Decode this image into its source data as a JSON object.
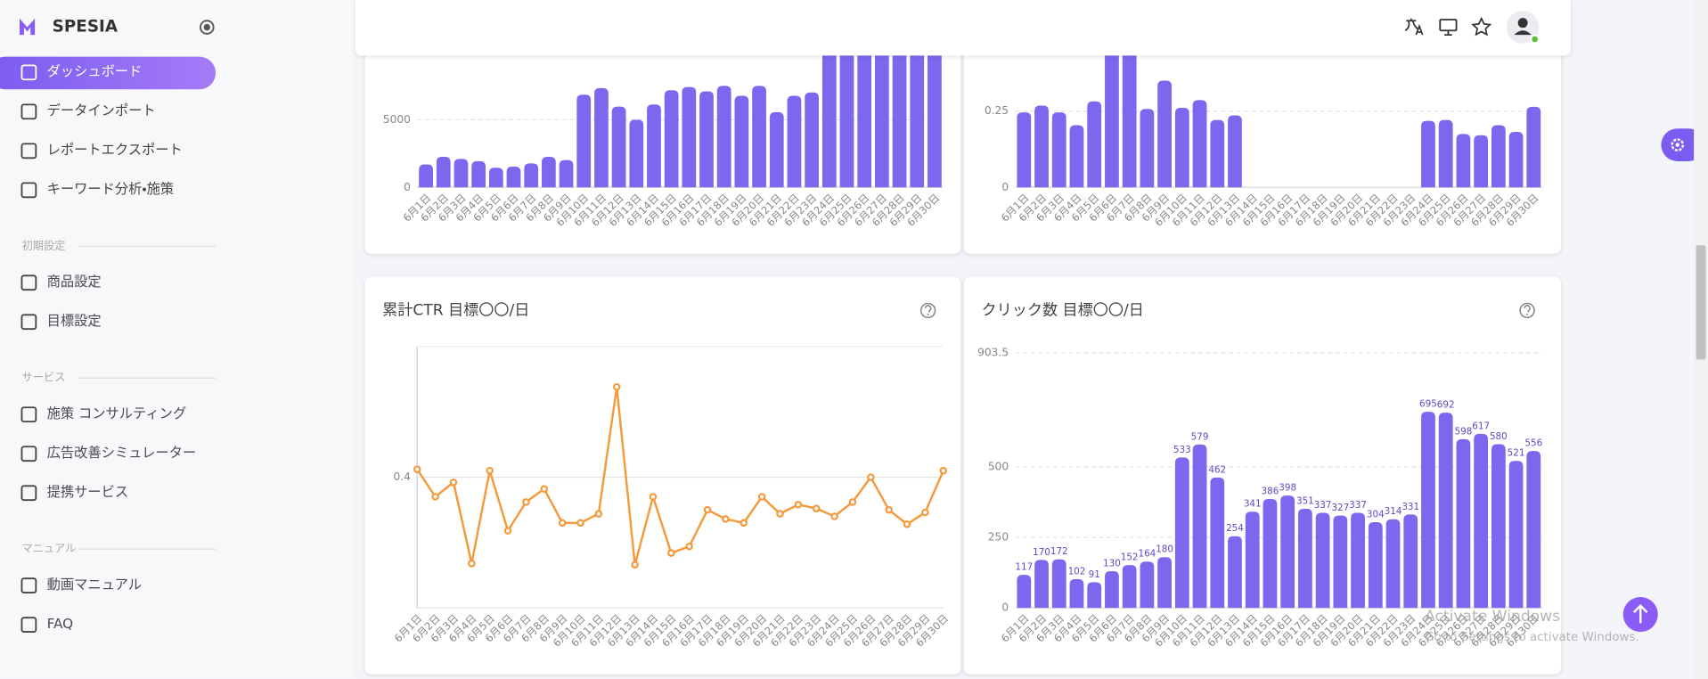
{
  "brand": "SPESIA",
  "nav": [
    "ダッシュボード",
    "データインポート",
    "レポートエクスポート",
    "キーワード分析・施策"
  ],
  "sections": [
    {
      "label": "初期設定",
      "items": [
        "商品設定",
        "目標設定"
      ]
    },
    {
      "label": "サービス",
      "items": [
        "施策 コンサルティング",
        "広告改善シミュレーター",
        "提携サービス"
      ]
    },
    {
      "label": "マニュアル",
      "items": [
        "動画マニュアル",
        "FAQ"
      ]
    }
  ],
  "chart_data": [
    {
      "type": "bar",
      "color": "#7b68ee",
      "grid": true,
      "categories": [
        "6月1日",
        "6月2日",
        "6月3日",
        "6月4日",
        "6月5日",
        "6月6日",
        "6月7日",
        "6月8日",
        "6月9日",
        "6月10日",
        "6月11日",
        "6月12日",
        "6月13日",
        "6月14日",
        "6月15日",
        "6月16日",
        "6月17日",
        "6月18日",
        "6月19日",
        "6月20日",
        "6月21日",
        "6月22日",
        "6月23日",
        "6月24日",
        "6月25日",
        "6月26日",
        "6月27日",
        "6月28日",
        "6月29日",
        "6月30日"
      ],
      "values": [
        1700,
        2260,
        2100,
        1940,
        1450,
        1530,
        1770,
        2260,
        2020,
        6850,
        7340,
        5970,
        5000,
        6130,
        7180,
        7420,
        7100,
        7500,
        6770,
        7500,
        5560,
        6770,
        7020,
        10500,
        10800,
        11200,
        10900,
        11000,
        10600,
        10700
      ],
      "ylim": [
        0,
        12000
      ],
      "yticks": [
        0,
        5000
      ]
    },
    {
      "type": "bar",
      "color": "#7b68ee",
      "grid": true,
      "categories": [
        "6月1日",
        "6月2日",
        "6月3日",
        "6月4日",
        "6月5日",
        "6月6日",
        "6月7日",
        "6月8日",
        "6月9日",
        "6月10日",
        "6月11日",
        "6月12日",
        "6月13日",
        "6月14日",
        "6月15日",
        "6月16日",
        "6月17日",
        "6月18日",
        "6月19日",
        "6月20日",
        "6月21日",
        "6月22日",
        "6月23日",
        "6月24日",
        "6月25日",
        "6月26日",
        "6月27日",
        "6月28日",
        "6月29日",
        "6月30日"
      ],
      "values": [
        0.246,
        0.268,
        0.246,
        0.204,
        0.282,
        0.5,
        0.5,
        0.257,
        0.35,
        0.261,
        0.286,
        0.221,
        0.236,
        null,
        null,
        null,
        null,
        null,
        null,
        null,
        null,
        null,
        null,
        0.218,
        0.221,
        0.175,
        0.171,
        0.204,
        0.182,
        0.264
      ],
      "ylim": [
        0,
        0.5
      ],
      "yticks": [
        0,
        0.25
      ]
    },
    {
      "type": "line",
      "title": "累計CTR 目標〇〇/日",
      "color": "#f59a3c",
      "grid": true,
      "categories": [
        "6月1日",
        "6月2日",
        "6月3日",
        "6月4日",
        "6月5日",
        "6月6日",
        "6月7日",
        "6月8日",
        "6月9日",
        "6月10日",
        "6月11日",
        "6月12日",
        "6月13日",
        "6月14日",
        "6月15日",
        "6月16日",
        "6月17日",
        "6月18日",
        "6月19日",
        "6月20日",
        "6月21日",
        "6月22日",
        "6月23日",
        "6月24日",
        "6月25日",
        "6月26日",
        "6月27日",
        "6月28日",
        "6月29日",
        "6月30日"
      ],
      "values": [
        0.406,
        0.385,
        0.396,
        0.334,
        0.405,
        0.359,
        0.381,
        0.391,
        0.365,
        0.365,
        0.372,
        0.469,
        0.333,
        0.385,
        0.342,
        0.347,
        0.375,
        0.368,
        0.365,
        0.385,
        0.372,
        0.379,
        0.376,
        0.37,
        0.381,
        0.4,
        0.375,
        0.364,
        0.373,
        0.405
      ],
      "ylim": [
        0.3,
        0.5
      ],
      "yticks": [
        0.4
      ]
    },
    {
      "type": "bar",
      "title": "クリック数 目標〇〇/日",
      "color": "#7b68ee",
      "grid": true,
      "data_labels": true,
      "categories": [
        "6月1日",
        "6月2日",
        "6月3日",
        "6月4日",
        "6月5日",
        "6月6日",
        "6月7日",
        "6月8日",
        "6月9日",
        "6月10日",
        "6月11日",
        "6月12日",
        "6月13日",
        "6月14日",
        "6月15日",
        "6月16日",
        "6月17日",
        "6月18日",
        "6月19日",
        "6月20日",
        "6月21日",
        "6月22日",
        "6月23日",
        "6月24日",
        "6月25日",
        "6月26日",
        "6月27日",
        "6月28日",
        "6月29日",
        "6月30日"
      ],
      "values": [
        117,
        170,
        172,
        102,
        91,
        130,
        152,
        164,
        180,
        533,
        579,
        462,
        254,
        341,
        386,
        398,
        351,
        337,
        327,
        337,
        304,
        314,
        331,
        695,
        692,
        598,
        617,
        580,
        521,
        556
      ],
      "ylim": [
        0,
        903.5
      ],
      "yticks": [
        0,
        250,
        500,
        903.5
      ]
    }
  ],
  "watermark": {
    "title": "Activate Windows",
    "subtitle": "Go to Settings to activate Windows."
  }
}
